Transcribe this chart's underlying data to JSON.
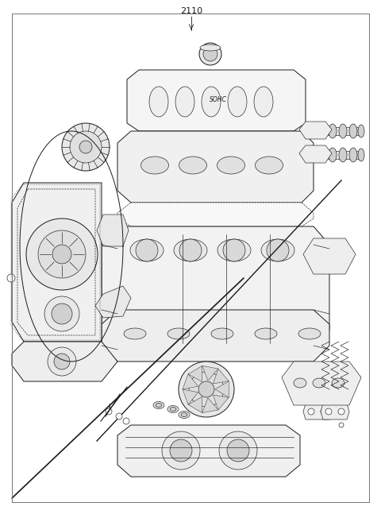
{
  "title": "2110",
  "background_color": "#ffffff",
  "line_color": "#1a1a1a",
  "light_gray": "#e8e8e8",
  "mid_gray": "#d0d0d0",
  "fig_width": 4.8,
  "fig_height": 6.57,
  "dpi": 100,
  "border_color": "#aaaaaa"
}
